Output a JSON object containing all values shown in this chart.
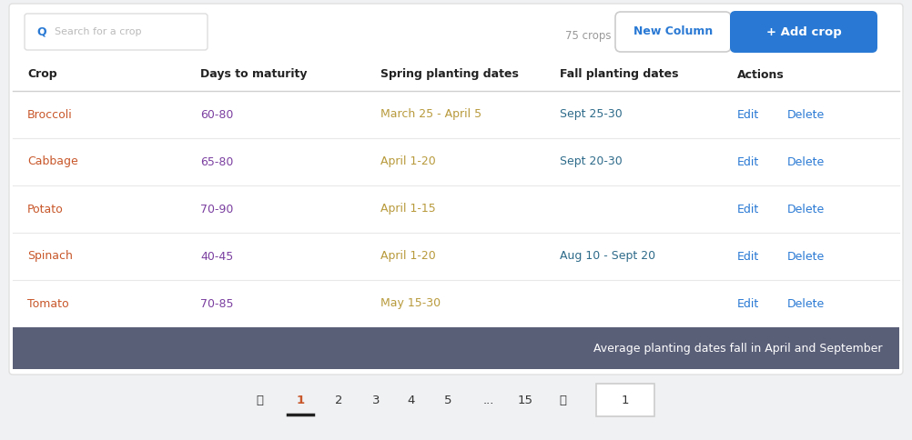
{
  "background_color": "#f0f1f3",
  "card_color": "#ffffff",
  "footer_bg": "#5a5f78",
  "search_placeholder": "Search for a crop",
  "crops_count": "75 crops",
  "btn_new_column": "New Column",
  "btn_add_crop": "+ Add crop",
  "columns": [
    "Crop",
    "Days to maturity",
    "Spring planting dates",
    "Fall planting dates",
    "Actions"
  ],
  "rows": [
    [
      "Broccoli",
      "60-80",
      "March 25 - April 5",
      "Sept 25-30"
    ],
    [
      "Cabbage",
      "65-80",
      "April 1-20",
      "Sept 20-30"
    ],
    [
      "Potato",
      "70-90",
      "April 1-15",
      ""
    ],
    [
      "Spinach",
      "40-45",
      "April 1-20",
      "Aug 10 - Sept 20"
    ],
    [
      "Tomato",
      "70-85",
      "May 15-30",
      ""
    ]
  ],
  "crop_color": "#c8572a",
  "days_color": "#7b3fa0",
  "spring_color": "#b89a3c",
  "fall_color": "#2e6b8a",
  "action_color": "#2979d4",
  "header_text_color": "#222222",
  "footer_text": "Average planting dates fall in April and September",
  "footer_text_color": "#ffffff",
  "page_numbers": [
    "〈",
    "1",
    "2",
    "3",
    "4",
    "5",
    "...",
    "15",
    "〉"
  ],
  "active_page": "1",
  "search_icon_color": "#2979d4",
  "new_col_text": "#2979d4",
  "add_crop_bg": "#2979d4",
  "add_crop_text": "#ffffff",
  "row_line_color": "#e8e8e8",
  "header_line_color": "#d0d0d0",
  "card_border": "#e0e0e0",
  "75crops_color": "#999999"
}
